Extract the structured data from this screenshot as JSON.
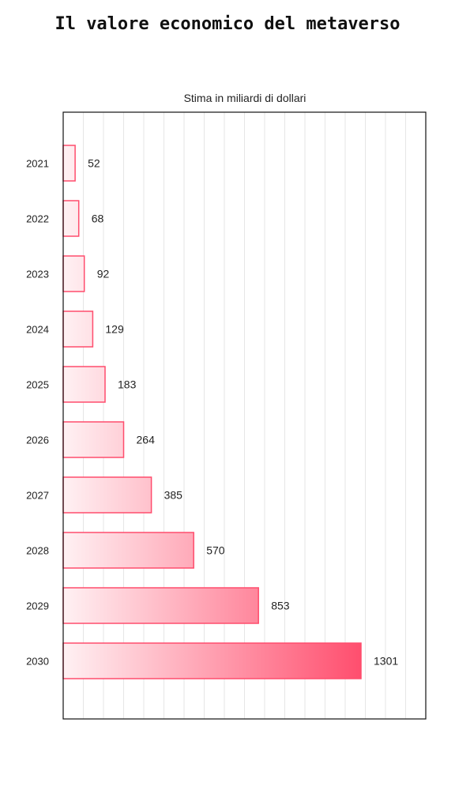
{
  "title": "Il valore economico del metaverso",
  "chart_data": {
    "type": "bar",
    "orientation": "horizontal",
    "subtitle": "Stima in miliardi di dollari",
    "categories": [
      "2021",
      "2022",
      "2023",
      "2024",
      "2025",
      "2026",
      "2027",
      "2028",
      "2029",
      "2030"
    ],
    "values": [
      52,
      68,
      92,
      129,
      183,
      264,
      385,
      570,
      853,
      1301
    ],
    "value_labels": [
      "52",
      "68",
      "92",
      "129",
      "183",
      "264",
      "385",
      "570",
      "853",
      "1301"
    ],
    "xlim": [
      0,
      1600
    ],
    "grid": true,
    "legend": "none",
    "colors": {
      "bar_stroke": "#ff4d6d",
      "bar_fill_start": "#fff1f3",
      "bar_fill_end": "#ff4d6d",
      "grid": "#e6e6e6",
      "frame": "#111111"
    }
  }
}
